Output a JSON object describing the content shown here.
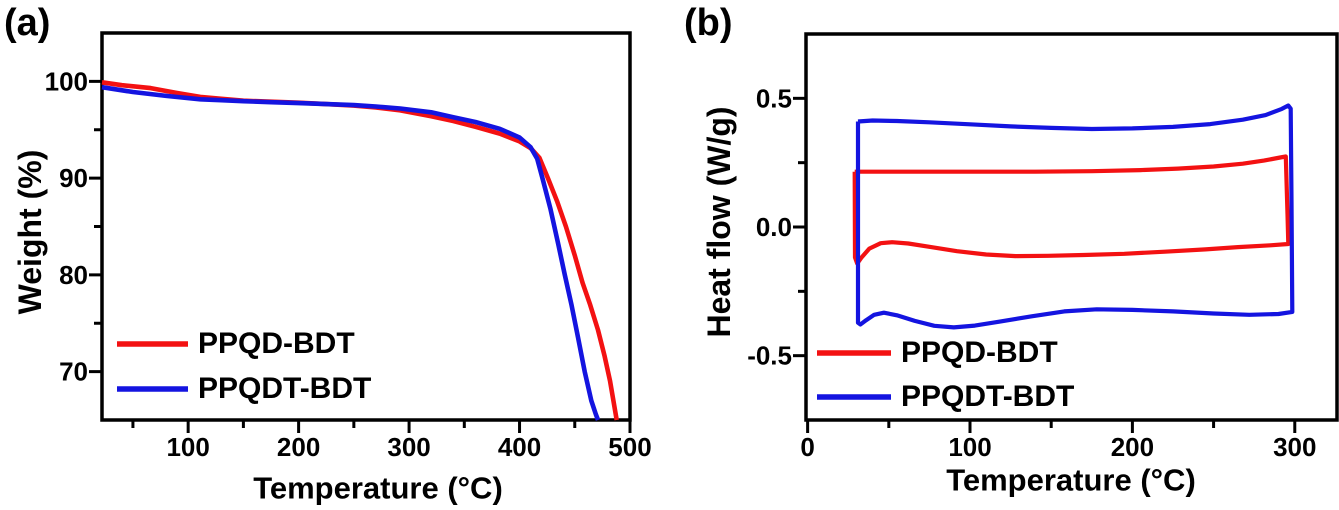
{
  "figure": {
    "background": "#ffffff",
    "frame_color": "#000000",
    "text_color": "#000000"
  },
  "chart_data": [
    {
      "type": "line",
      "panel_label": "(a)",
      "xlabel": "Temperature (°C)",
      "ylabel": "Weight (%)",
      "xlim": [
        22,
        500
      ],
      "ylim": [
        65,
        105
      ],
      "grid": false,
      "legend_position": "lower-left",
      "xticks": {
        "major": [
          100,
          200,
          300,
          400,
          500
        ],
        "labels": [
          "100",
          "200",
          "300",
          "400",
          "500"
        ],
        "minor": [
          50,
          150,
          250,
          350,
          450
        ]
      },
      "yticks": {
        "major": [
          70,
          80,
          90,
          100
        ],
        "labels": [
          "70",
          "80",
          "90",
          "100"
        ],
        "minor": [
          75,
          85,
          95
        ]
      },
      "series": [
        {
          "name": "PPQD-BDT",
          "color": "#f31112",
          "points": [
            [
              22,
              99.9
            ],
            [
              40,
              99.6
            ],
            [
              66,
              99.3
            ],
            [
              90,
              98.8
            ],
            [
              111,
              98.4
            ],
            [
              130,
              98.2
            ],
            [
              150,
              98.0
            ],
            [
              175,
              97.9
            ],
            [
              200,
              97.8
            ],
            [
              225,
              97.65
            ],
            [
              250,
              97.5
            ],
            [
              270,
              97.3
            ],
            [
              292,
              97.0
            ],
            [
              320,
              96.4
            ],
            [
              340,
              95.9
            ],
            [
              360,
              95.3
            ],
            [
              382,
              94.6
            ],
            [
              400,
              93.8
            ],
            [
              410,
              93.1
            ],
            [
              418,
              92.1
            ],
            [
              426,
              89.9
            ],
            [
              434,
              87.6
            ],
            [
              442,
              85.0
            ],
            [
              450,
              82.0
            ],
            [
              457,
              79.2
            ],
            [
              464,
              76.9
            ],
            [
              471,
              74.3
            ],
            [
              477,
              71.6
            ],
            [
              482,
              69.0
            ],
            [
              485,
              67.0
            ],
            [
              488,
              65.0
            ]
          ]
        },
        {
          "name": "PPQDT-BDT",
          "color": "#1414e0",
          "points": [
            [
              22,
              99.4
            ],
            [
              50,
              98.9
            ],
            [
              80,
              98.5
            ],
            [
              111,
              98.15
            ],
            [
              130,
              98.05
            ],
            [
              150,
              97.95
            ],
            [
              175,
              97.85
            ],
            [
              200,
              97.75
            ],
            [
              225,
              97.65
            ],
            [
              250,
              97.55
            ],
            [
              270,
              97.4
            ],
            [
              292,
              97.2
            ],
            [
              320,
              96.8
            ],
            [
              340,
              96.3
            ],
            [
              360,
              95.8
            ],
            [
              382,
              95.1
            ],
            [
              400,
              94.2
            ],
            [
              410,
              93.2
            ],
            [
              416,
              92.0
            ],
            [
              421,
              89.9
            ],
            [
              428,
              86.8
            ],
            [
              435,
              83.2
            ],
            [
              441,
              80.0
            ],
            [
              447,
              76.9
            ],
            [
              453,
              73.5
            ],
            [
              459,
              70.0
            ],
            [
              465,
              67.0
            ],
            [
              469,
              65.6
            ],
            [
              471,
              65.0
            ]
          ]
        }
      ]
    },
    {
      "type": "line",
      "panel_label": "(b)",
      "xlabel": "Temperature (°C)",
      "ylabel": "Heat flow (W/g)",
      "xlim": [
        -1,
        326
      ],
      "ylim": [
        -0.75,
        0.75
      ],
      "grid": false,
      "legend_position": "lower-left",
      "xticks": {
        "major": [
          0,
          100,
          200,
          300
        ],
        "labels": [
          "0",
          "100",
          "200",
          "300"
        ],
        "minor": [
          50,
          150,
          250
        ]
      },
      "yticks": {
        "major": [
          -0.5,
          0.0,
          0.5
        ],
        "labels": [
          "-0.5",
          "0.0",
          "0.5"
        ],
        "minor": [
          -0.25,
          0.25
        ]
      },
      "series": [
        {
          "name": "PPQD-BDT",
          "color": "#f31112",
          "points": [
            [
              29,
              0.215
            ],
            [
              60,
              0.215
            ],
            [
              100,
              0.215
            ],
            [
              140,
              0.215
            ],
            [
              175,
              0.217
            ],
            [
              205,
              0.221
            ],
            [
              228,
              0.227
            ],
            [
              250,
              0.235
            ],
            [
              268,
              0.246
            ],
            [
              281,
              0.258
            ],
            [
              291,
              0.27
            ],
            [
              294.5,
              0.274
            ],
            [
              295.5,
              0.05
            ],
            [
              296,
              -0.066
            ],
            [
              285,
              -0.071
            ],
            [
              265,
              -0.078
            ],
            [
              245,
              -0.087
            ],
            [
              220,
              -0.096
            ],
            [
              195,
              -0.104
            ],
            [
              170,
              -0.109
            ],
            [
              148,
              -0.112
            ],
            [
              128,
              -0.113
            ],
            [
              110,
              -0.107
            ],
            [
              92,
              -0.094
            ],
            [
              76,
              -0.078
            ],
            [
              62,
              -0.064
            ],
            [
              52,
              -0.059
            ],
            [
              45,
              -0.063
            ],
            [
              38,
              -0.084
            ],
            [
              33,
              -0.12
            ],
            [
              30.5,
              -0.142
            ],
            [
              29.2,
              -0.118
            ],
            [
              29,
              0.215
            ]
          ]
        },
        {
          "name": "PPQDT-BDT",
          "color": "#1414e0",
          "points": [
            [
              31,
              0.41
            ],
            [
              40,
              0.414
            ],
            [
              55,
              0.412
            ],
            [
              75,
              0.407
            ],
            [
              100,
              0.399
            ],
            [
              125,
              0.391
            ],
            [
              150,
              0.385
            ],
            [
              175,
              0.381
            ],
            [
              200,
              0.383
            ],
            [
              225,
              0.389
            ],
            [
              248,
              0.4
            ],
            [
              268,
              0.417
            ],
            [
              282,
              0.435
            ],
            [
              292,
              0.459
            ],
            [
              296,
              0.472
            ],
            [
              297.5,
              0.46
            ],
            [
              298,
              0.1
            ],
            [
              298.5,
              -0.33
            ],
            [
              290,
              -0.338
            ],
            [
              272,
              -0.341
            ],
            [
              250,
              -0.336
            ],
            [
              225,
              -0.328
            ],
            [
              200,
              -0.322
            ],
            [
              178,
              -0.32
            ],
            [
              158,
              -0.328
            ],
            [
              138,
              -0.347
            ],
            [
              118,
              -0.368
            ],
            [
              103,
              -0.383
            ],
            [
              90,
              -0.39
            ],
            [
              78,
              -0.384
            ],
            [
              66,
              -0.365
            ],
            [
              55,
              -0.343
            ],
            [
              47,
              -0.333
            ],
            [
              41,
              -0.341
            ],
            [
              36,
              -0.362
            ],
            [
              32.5,
              -0.379
            ],
            [
              31,
              -0.372
            ],
            [
              31,
              0.41
            ]
          ]
        }
      ]
    }
  ]
}
